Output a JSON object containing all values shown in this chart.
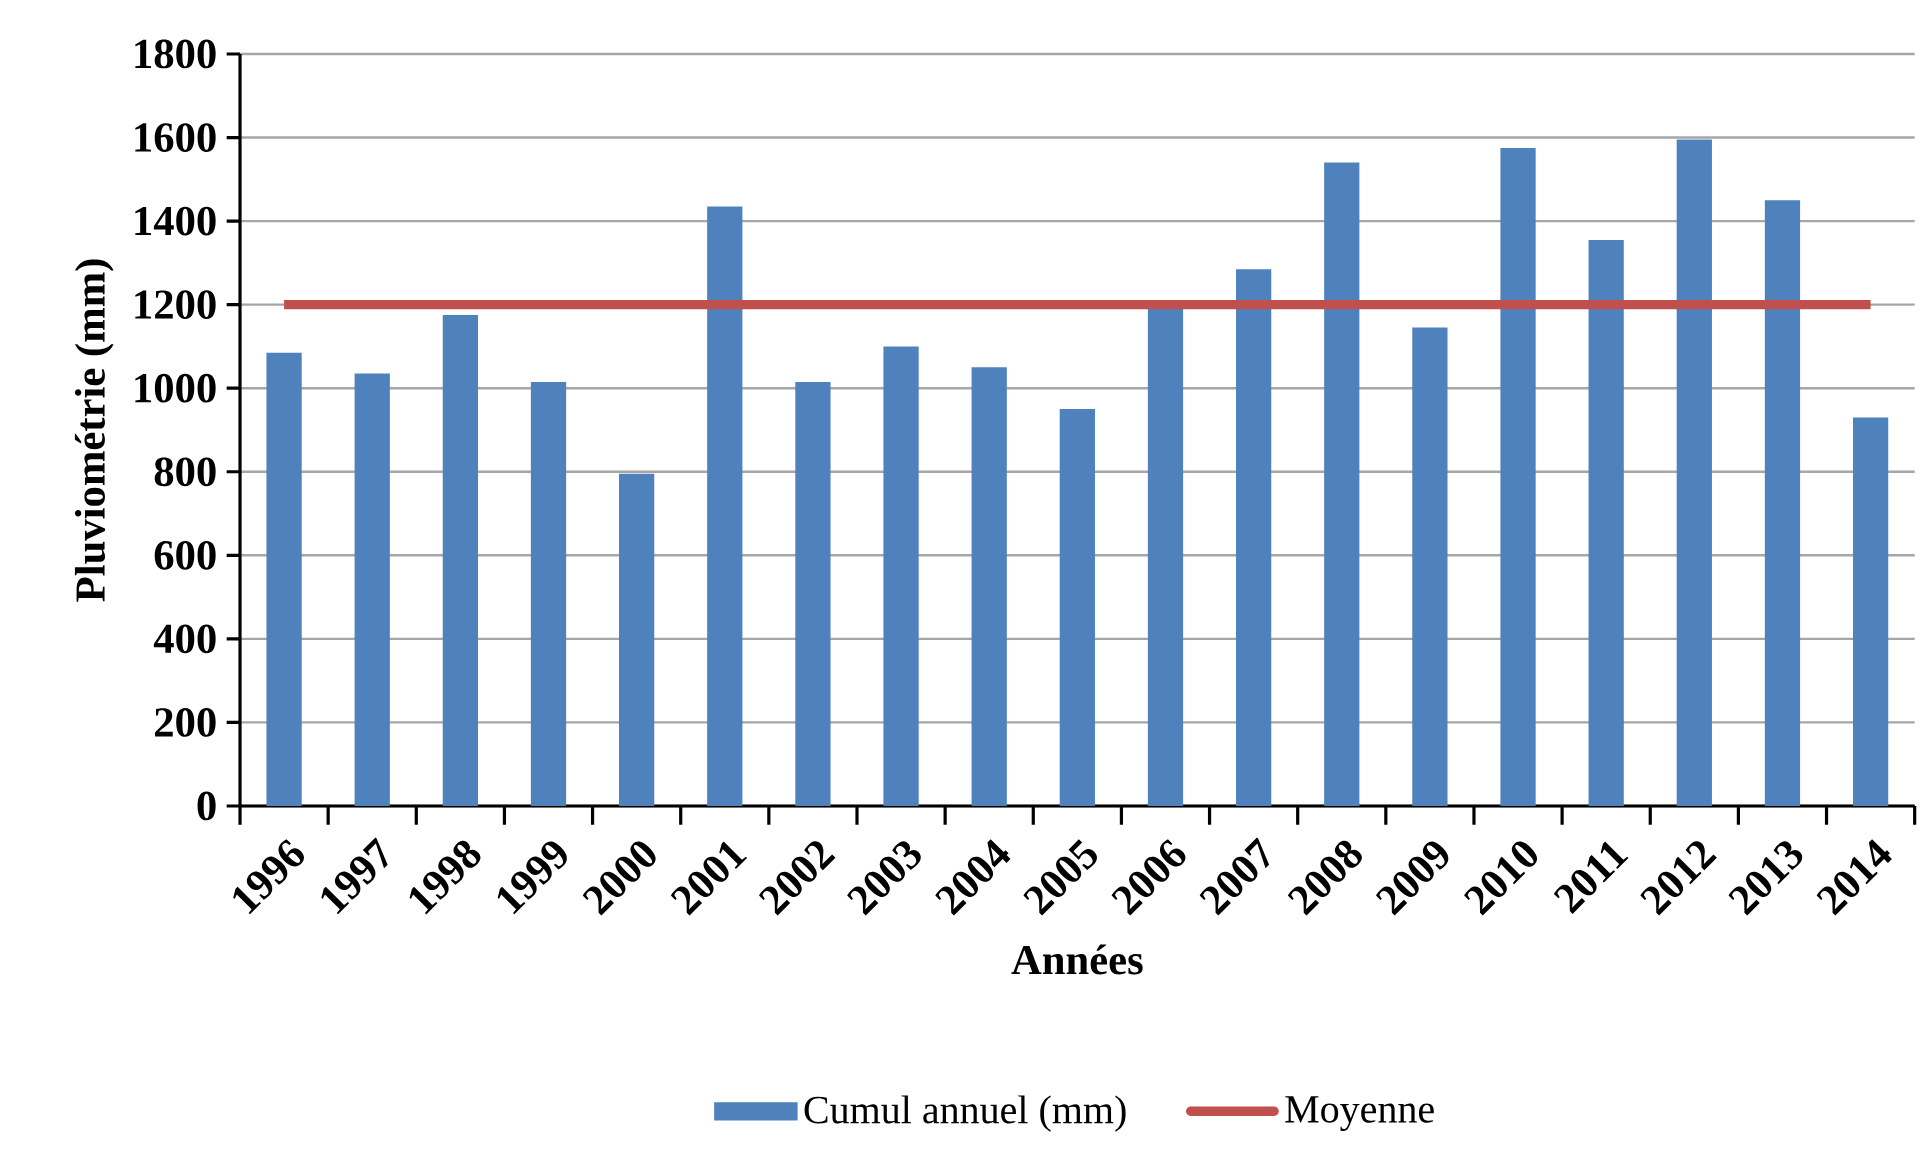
{
  "chart_data": {
    "type": "bar",
    "xlabel": "Années",
    "ylabel": "Pluviométrie (mm)",
    "categories": [
      "1996",
      "1997",
      "1998",
      "1999",
      "2000",
      "2001",
      "2002",
      "2003",
      "2004",
      "2005",
      "2006",
      "2007",
      "2008",
      "2009",
      "2010",
      "2011",
      "2012",
      "2013",
      "2014"
    ],
    "series": [
      {
        "name": "Cumul annuel (mm)",
        "color": "#4f81bd",
        "values": [
          1085,
          1035,
          1175,
          1015,
          795,
          1435,
          1015,
          1100,
          1050,
          950,
          1190,
          1285,
          1540,
          1145,
          1575,
          1355,
          1595,
          1450,
          930
        ]
      },
      {
        "name": "Moyenne",
        "type": "line",
        "color": "#c0504d",
        "values": [
          1200,
          1200,
          1200,
          1200,
          1200,
          1200,
          1200,
          1200,
          1200,
          1200,
          1200,
          1200,
          1200,
          1200,
          1200,
          1200,
          1200,
          1200,
          1200
        ]
      }
    ],
    "ylim": [
      0,
      1800
    ],
    "yticks": [
      0,
      200,
      400,
      600,
      800,
      1000,
      1200,
      1400,
      1600,
      1800
    ],
    "grid": "y",
    "legend": "bottom"
  }
}
